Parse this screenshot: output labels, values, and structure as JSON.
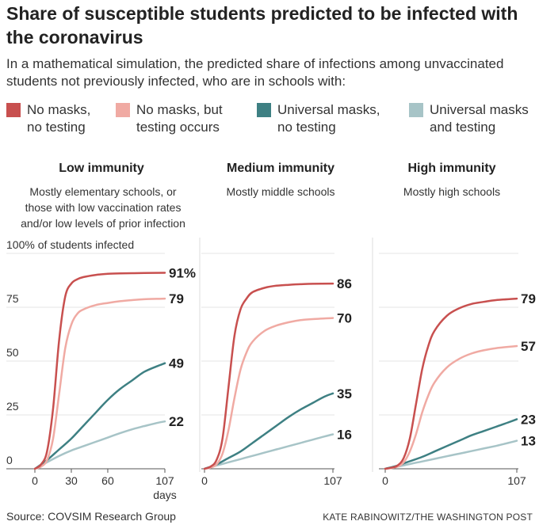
{
  "title": "Share of susceptible students predicted to be infected with the coronavirus",
  "subtitle": "In a mathematical simulation, the predicted share of infections among unvaccinated students not previously infected, who are in schools with:",
  "legend": [
    {
      "label": "No masks,\nno testing",
      "color": "#c8504f"
    },
    {
      "label": "No masks, but\ntesting occurs",
      "color": "#f0aaa3"
    },
    {
      "label": "Universal masks,\nno testing",
      "color": "#3e8083"
    },
    {
      "label": "Universal masks\nand testing",
      "color": "#a7c4c7"
    }
  ],
  "panels": [
    {
      "title": "Low immunity",
      "description": "Mostly elementary schools, or\nthose with low vaccination rates\nand/or low levels of prior infection"
    },
    {
      "title": "Medium immunity",
      "description": "Mostly middle schools"
    },
    {
      "title": "High immunity",
      "description": "Mostly high schools"
    }
  ],
  "source": "Source: COVSIM Research Group",
  "credit": "KATE RABINOWITZ/THE WASHINGTON POST",
  "chart_data": [
    {
      "type": "line",
      "title": "Low immunity",
      "xlabel": "days",
      "ylabel": "100% of students infected",
      "xlim": [
        0,
        107
      ],
      "ylim": [
        0,
        100
      ],
      "xticks": [
        0,
        30,
        60,
        107
      ],
      "yticks": [
        0,
        25,
        50,
        75,
        100
      ],
      "ytick_labels": [
        "0",
        "25",
        "50",
        "75",
        "100% of students infected"
      ],
      "series": [
        {
          "name": "No masks, no testing",
          "color": "#c8504f",
          "end_label": "91%",
          "x": [
            0,
            5,
            10,
            15,
            20,
            25,
            30,
            35,
            40,
            50,
            60,
            70,
            80,
            90,
            107
          ],
          "y": [
            0,
            2,
            8,
            28,
            60,
            80,
            86,
            88,
            89,
            90,
            90.5,
            90.7,
            90.8,
            90.9,
            91
          ]
        },
        {
          "name": "No masks, but testing occurs",
          "color": "#f0aaa3",
          "end_label": "79",
          "x": [
            0,
            5,
            10,
            15,
            20,
            25,
            30,
            35,
            40,
            50,
            60,
            70,
            80,
            90,
            107
          ],
          "y": [
            0,
            1,
            4,
            14,
            35,
            56,
            67,
            72,
            74,
            76,
            77,
            77.8,
            78.3,
            78.7,
            79
          ]
        },
        {
          "name": "Universal masks, no testing",
          "color": "#3e8083",
          "end_label": "49",
          "x": [
            0,
            10,
            20,
            30,
            40,
            50,
            60,
            70,
            80,
            90,
            100,
            107
          ],
          "y": [
            0,
            4,
            9,
            14,
            20,
            26,
            32,
            37,
            41,
            45,
            47.5,
            49
          ]
        },
        {
          "name": "Universal masks and testing",
          "color": "#a7c4c7",
          "end_label": "22",
          "x": [
            0,
            10,
            20,
            30,
            40,
            50,
            60,
            70,
            80,
            90,
            100,
            107
          ],
          "y": [
            0,
            3,
            6,
            8.5,
            10.5,
            12.5,
            14.5,
            16.5,
            18.3,
            19.8,
            21.2,
            22
          ]
        }
      ]
    },
    {
      "type": "line",
      "title": "Medium immunity",
      "xlim": [
        0,
        107
      ],
      "ylim": [
        0,
        100
      ],
      "xticks": [
        0,
        107
      ],
      "series": [
        {
          "name": "No masks, no testing",
          "color": "#c8504f",
          "end_label": "86",
          "x": [
            0,
            5,
            10,
            15,
            20,
            25,
            30,
            35,
            40,
            50,
            60,
            70,
            80,
            90,
            107
          ],
          "y": [
            0,
            1,
            4,
            14,
            38,
            62,
            74,
            79,
            82,
            84,
            85,
            85.4,
            85.7,
            85.9,
            86
          ]
        },
        {
          "name": "No masks, but testing occurs",
          "color": "#f0aaa3",
          "end_label": "70",
          "x": [
            0,
            5,
            10,
            15,
            20,
            25,
            30,
            35,
            40,
            50,
            60,
            70,
            80,
            90,
            107
          ],
          "y": [
            0,
            0.5,
            2,
            7,
            18,
            33,
            46,
            54,
            59,
            64,
            66.5,
            68,
            69,
            69.5,
            70
          ]
        },
        {
          "name": "Universal masks, no testing",
          "color": "#3e8083",
          "end_label": "35",
          "x": [
            0,
            10,
            20,
            30,
            40,
            50,
            60,
            70,
            80,
            90,
            100,
            107
          ],
          "y": [
            0,
            2,
            5,
            8,
            12,
            16,
            20,
            24,
            27.5,
            30.5,
            33.5,
            35
          ]
        },
        {
          "name": "Universal masks and testing",
          "color": "#a7c4c7",
          "end_label": "16",
          "x": [
            0,
            10,
            20,
            30,
            40,
            50,
            60,
            70,
            80,
            90,
            100,
            107
          ],
          "y": [
            0,
            1.5,
            3,
            4.5,
            6,
            7.5,
            9,
            10.5,
            12,
            13.5,
            15,
            16
          ]
        }
      ]
    },
    {
      "type": "line",
      "title": "High immunity",
      "xlim": [
        0,
        107
      ],
      "ylim": [
        0,
        100
      ],
      "xticks": [
        0,
        107
      ],
      "series": [
        {
          "name": "No masks, no testing",
          "color": "#c8504f",
          "end_label": "79",
          "x": [
            0,
            5,
            10,
            15,
            20,
            25,
            30,
            35,
            40,
            50,
            60,
            70,
            80,
            90,
            107
          ],
          "y": [
            0,
            0.5,
            1.5,
            5,
            14,
            30,
            46,
            57,
            64,
            71,
            74.5,
            76.5,
            77.5,
            78.3,
            79
          ]
        },
        {
          "name": "No masks, but testing occurs",
          "color": "#f0aaa3",
          "end_label": "57",
          "x": [
            0,
            5,
            10,
            15,
            20,
            25,
            30,
            35,
            40,
            50,
            60,
            70,
            80,
            90,
            107
          ],
          "y": [
            0,
            0.3,
            1,
            3,
            8,
            16,
            26,
            34,
            40,
            47,
            51,
            53.5,
            55,
            56,
            57
          ]
        },
        {
          "name": "Universal masks, no testing",
          "color": "#3e8083",
          "end_label": "23",
          "x": [
            0,
            10,
            20,
            30,
            40,
            50,
            60,
            70,
            80,
            90,
            100,
            107
          ],
          "y": [
            0,
            1.5,
            3.5,
            5.5,
            8,
            10.5,
            13,
            15.5,
            17.5,
            19.5,
            21.5,
            23
          ]
        },
        {
          "name": "Universal masks and testing",
          "color": "#a7c4c7",
          "end_label": "13",
          "x": [
            0,
            10,
            20,
            30,
            40,
            50,
            60,
            70,
            80,
            90,
            100,
            107
          ],
          "y": [
            0,
            1,
            2.2,
            3.4,
            4.6,
            5.8,
            7,
            8.2,
            9.4,
            10.6,
            12,
            13
          ]
        }
      ]
    }
  ]
}
